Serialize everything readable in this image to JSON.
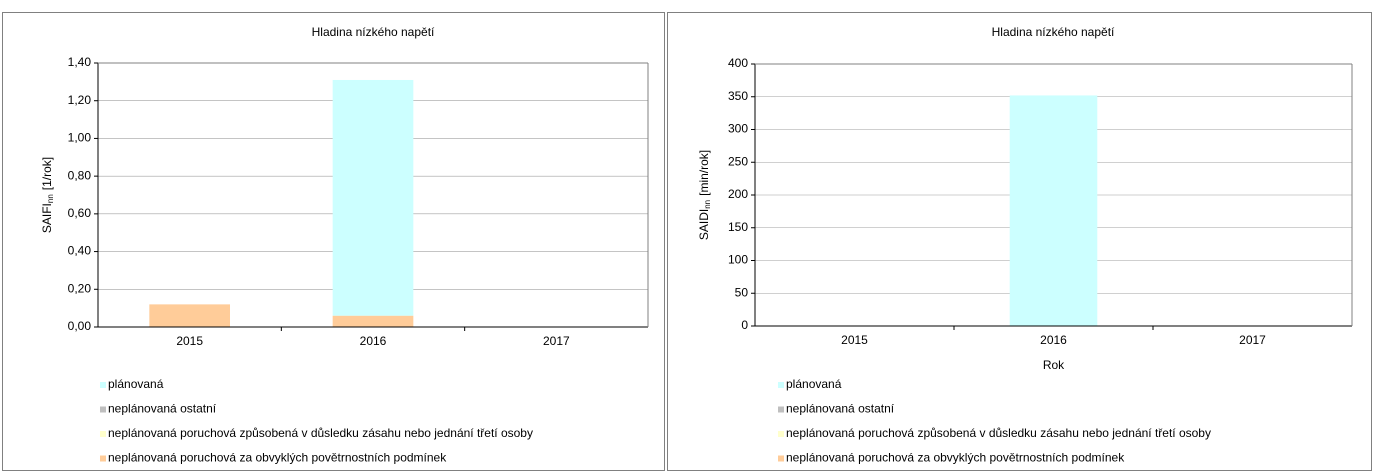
{
  "chart_data": [
    {
      "type": "stacked_bar",
      "title": "Hladina nízkého napětí",
      "y_label": {
        "name": "SAIFI",
        "sub": "nn",
        "unit": "[1/rok]"
      },
      "categories": [
        "2015",
        "2016",
        "2017"
      ],
      "series": [
        {
          "name": "plánovaná",
          "color": "#ccffff",
          "values": [
            0,
            1.25,
            0
          ]
        },
        {
          "name": "neplánovaná ostatní",
          "color": "#bfbfbf",
          "values": [
            0,
            0,
            0
          ]
        },
        {
          "name": "neplánovaná poruchová způsobená v důsledku zásahu nebo jednání třetí osoby",
          "color": "#ffffcc",
          "values": [
            0,
            0,
            0
          ]
        },
        {
          "name": "neplánovaná poruchová za obvyklých povětrnostních podmínek",
          "color": "#ffcc99",
          "values": [
            0.12,
            0.06,
            0
          ]
        }
      ],
      "ylim": [
        0,
        1.4
      ],
      "yticks": [
        {
          "value": 0,
          "label": "0,00"
        },
        {
          "value": 0.2,
          "label": "0,20"
        },
        {
          "value": 0.4,
          "label": "0,40"
        },
        {
          "value": 0.6,
          "label": "0,60"
        },
        {
          "value": 0.8,
          "label": "0,80"
        },
        {
          "value": 1.0,
          "label": "1,00"
        },
        {
          "value": 1.2,
          "label": "1,20"
        },
        {
          "value": 1.4,
          "label": "1,40"
        }
      ],
      "grid": true
    },
    {
      "type": "stacked_bar",
      "title": "Hladina nízkého napětí",
      "y_label": {
        "name": "SAIDI",
        "sub": "nn",
        "unit": "[min/rok]"
      },
      "x_label": "Rok",
      "categories": [
        "2015",
        "2016",
        "2017"
      ],
      "series": [
        {
          "name": "plánovaná",
          "color": "#ccffff",
          "values": [
            0,
            352,
            0
          ]
        },
        {
          "name": "neplánovaná ostatní",
          "color": "#bfbfbf",
          "values": [
            0,
            0,
            0
          ]
        },
        {
          "name": "neplánovaná poruchová způsobená v důsledku zásahu nebo jednání třetí osoby",
          "color": "#ffffcc",
          "values": [
            0,
            0,
            0
          ]
        },
        {
          "name": "neplánovaná poruchová za obvyklých povětrnostních podmínek",
          "color": "#ffcc99",
          "values": [
            0,
            0,
            0
          ]
        }
      ],
      "ylim": [
        0,
        400
      ],
      "yticks": [
        0,
        50,
        100,
        150,
        200,
        250,
        300,
        350,
        400
      ],
      "grid": true
    }
  ]
}
